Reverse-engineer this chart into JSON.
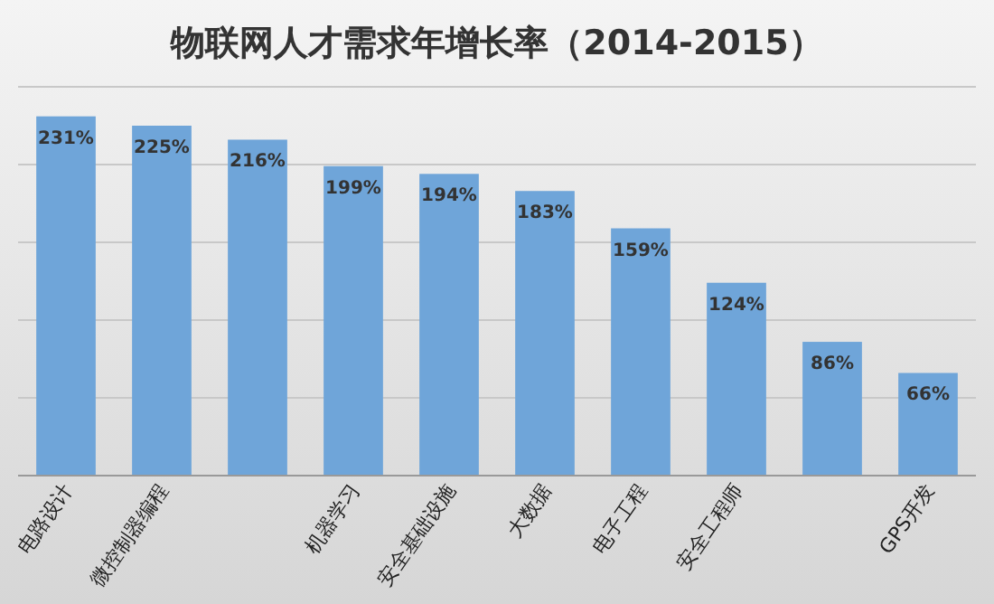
{
  "chart_data": {
    "type": "bar",
    "title": "物联网人才需求年增长率（2014-2015）",
    "categories": [
      "电路设计",
      "微控制器编程",
      null,
      "机器学习",
      "安全基础设施",
      "大数据",
      "电子工程",
      "安全工程师",
      null,
      "GPS开发"
    ],
    "values": [
      231,
      225,
      216,
      199,
      194,
      183,
      159,
      124,
      86,
      66
    ],
    "value_labels": [
      "231%",
      "225%",
      "216%",
      "199%",
      "194%",
      "183%",
      "159%",
      "124%",
      "86%",
      "66%"
    ],
    "color": "#6fa5d9",
    "ylim": [
      0,
      250
    ],
    "yticks": [
      {
        "value": 0,
        "label": null
      },
      {
        "value": 50,
        "label": null
      },
      {
        "value": 100,
        "label": null
      },
      {
        "value": 150,
        "label": null
      },
      {
        "value": 200,
        "label": null
      },
      {
        "value": 250,
        "label": null
      }
    ],
    "grid": "y",
    "tick_labels": "x"
  }
}
